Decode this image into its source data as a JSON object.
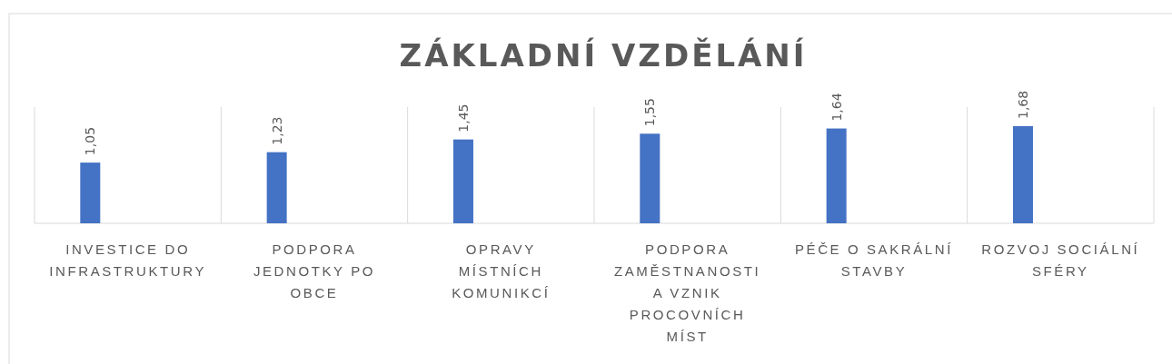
{
  "chart_data": {
    "type": "bar",
    "title": "ZÁKLADNÍ VZDĚLÁNÍ",
    "categories": [
      "INVESTICE DO\nINFRASTRUKTURY",
      "PODPORA\nJEDNOTKY PO\nOBCE",
      "OPRAVY\nMÍSTNÍCH\nKOMUNIKCÍ",
      "PODPORA\nZAMĚSTNANOSTI\nA VZNIK\nPROCOVNÍCH\nMÍST",
      "PÉČE O SAKRÁLNÍ\nSTAVBY",
      "ROZVOJ SOCIÁLNÍ\nSFÉRY"
    ],
    "values": [
      1.05,
      1.23,
      1.45,
      1.55,
      1.64,
      1.68
    ],
    "value_labels": [
      "1,05",
      "1,23",
      "1,45",
      "1,55",
      "1,64",
      "1,68"
    ],
    "color": "#4472c4",
    "grid": "x"
  }
}
